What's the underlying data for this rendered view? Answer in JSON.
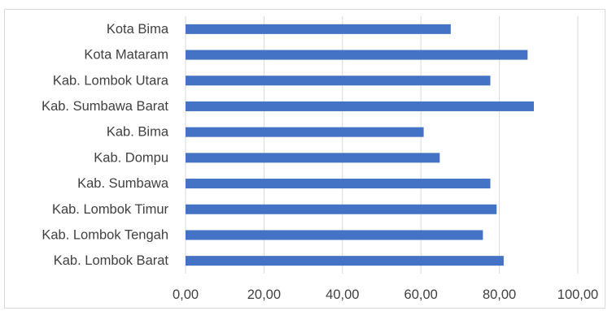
{
  "chart_data": {
    "type": "bar",
    "orientation": "horizontal",
    "categories": [
      "Kota Bima",
      "Kota Mataram",
      "Kab. Lombok Utara",
      "Kab. Sumbawa Barat",
      "Kab. Bima",
      "Kab. Dompu",
      "Kab. Sumbawa",
      "Kab. Lombok Timur",
      "Kab. Lombok Tengah",
      "Kab. Lombok Barat"
    ],
    "values": [
      67.6,
      87.2,
      77.7,
      88.8,
      60.7,
      64.8,
      77.7,
      79.3,
      75.8,
      81.1
    ],
    "xlim": [
      0,
      100
    ],
    "xticks": [
      0,
      20,
      40,
      60,
      80,
      100
    ],
    "xtick_labels": [
      "0,00",
      "20,00",
      "40,00",
      "60,00",
      "80,00",
      "100,00"
    ],
    "title": "",
    "xlabel": "",
    "ylabel": "",
    "grid": "vertical",
    "legend": "none",
    "colors": {
      "bar": "#4472c4",
      "grid": "#d9d9d9",
      "text": "#404040",
      "border": "#d9d9d9"
    }
  }
}
